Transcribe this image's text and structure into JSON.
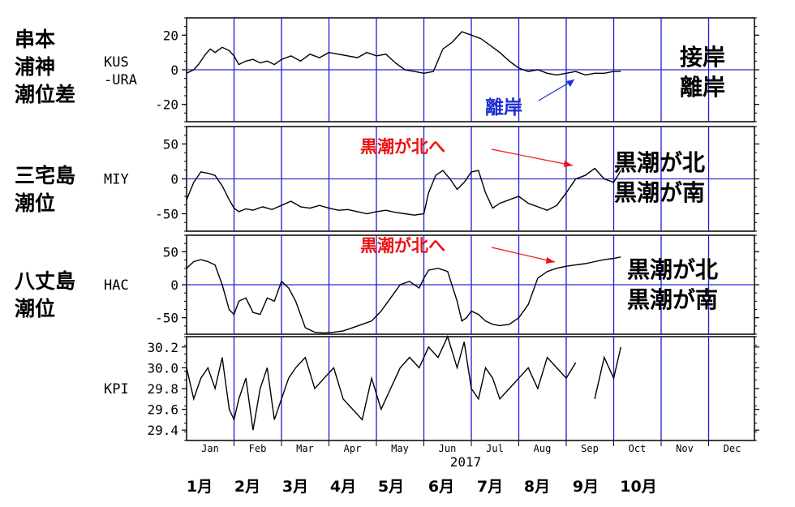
{
  "colors": {
    "axis": "#000000",
    "grid_h": "#2b2bd6",
    "grid_v": "#1a1adc",
    "series": "#000000",
    "red": "#ee1111",
    "blue": "#1f2fd0"
  },
  "year_label": "2017",
  "month_ticks": [
    "Jan",
    "Feb",
    "Mar",
    "Apr",
    "May",
    "Jun",
    "Jul",
    "Aug",
    "Sep",
    "Oct",
    "Nov",
    "Dec"
  ],
  "month_labels_jp": [
    "1月",
    "2月",
    "3月",
    "4月",
    "5月",
    "6月",
    "7月",
    "8月",
    "9月",
    "10月"
  ],
  "panels": [
    {
      "id": "kus",
      "left_title": [
        "串本",
        "浦神",
        "潮位差"
      ],
      "code": [
        "KUS",
        "-URA"
      ],
      "yticks": [
        20,
        0,
        -20
      ],
      "ylim": [
        -30,
        30
      ],
      "right_labels": [
        "接岸",
        "離岸"
      ],
      "note": "離岸",
      "zero_line": 0
    },
    {
      "id": "miy",
      "left_title": [
        "三宅島",
        "潮位"
      ],
      "code": [
        "MIY"
      ],
      "yticks": [
        50,
        0,
        -50
      ],
      "ylim": [
        -75,
        75
      ],
      "right_labels": [
        "黒潮が北",
        "黒潮が南"
      ],
      "note": "黒潮が北へ",
      "zero_line": 0
    },
    {
      "id": "hac",
      "left_title": [
        "八丈島",
        "潮位"
      ],
      "code": [
        "HAC"
      ],
      "yticks": [
        50,
        0,
        -50
      ],
      "ylim": [
        -75,
        75
      ],
      "right_labels": [
        "黒潮が北",
        "黒潮が南"
      ],
      "note": "黒潮が北へ",
      "zero_line": 0
    },
    {
      "id": "kpi",
      "left_title": [],
      "code": [
        "KPI"
      ],
      "yticks": [
        "30.2",
        "30.0",
        "29.8",
        "29.6",
        "29.4"
      ],
      "ytick_values": [
        30.2,
        30.0,
        29.8,
        29.6,
        29.4
      ],
      "ylim": [
        29.3,
        30.3
      ],
      "right_labels": [],
      "note": ""
    }
  ],
  "chart_data": [
    {
      "type": "line",
      "title": "",
      "ylabel": "KUS -URA",
      "xlabel": "2017",
      "ylim": [
        -30,
        30
      ],
      "x": [
        0,
        0.15,
        0.25,
        0.4,
        0.5,
        0.6,
        0.75,
        0.9,
        1.0,
        1.1,
        1.25,
        1.4,
        1.55,
        1.7,
        1.85,
        2.0,
        2.2,
        2.4,
        2.6,
        2.8,
        3.0,
        3.2,
        3.4,
        3.6,
        3.8,
        4.0,
        4.2,
        4.4,
        4.6,
        4.8,
        5.0,
        5.2,
        5.4,
        5.6,
        5.8,
        6.0,
        6.2,
        6.4,
        6.6,
        6.8,
        7.0,
        7.2,
        7.4,
        7.6,
        7.8,
        8.0,
        8.2,
        8.4,
        8.6,
        8.8,
        9.0,
        9.15
      ],
      "values": [
        -2,
        0,
        3,
        9,
        12,
        10,
        13,
        11,
        8,
        3,
        5,
        6,
        4,
        5,
        3,
        6,
        8,
        5,
        9,
        7,
        10,
        9,
        8,
        7,
        10,
        8,
        9,
        4,
        0,
        -1,
        -2,
        -1,
        12,
        16,
        22,
        20,
        18,
        14,
        10,
        5,
        1,
        -1,
        0,
        -2,
        -3,
        -2,
        -1,
        -3,
        -2,
        -2,
        -1,
        -1
      ]
    },
    {
      "type": "line",
      "ylabel": "MIY",
      "ylim": [
        -75,
        75
      ],
      "x": [
        0,
        0.15,
        0.3,
        0.45,
        0.6,
        0.75,
        0.9,
        1.0,
        1.1,
        1.25,
        1.4,
        1.6,
        1.8,
        2.0,
        2.2,
        2.4,
        2.6,
        2.8,
        3.0,
        3.2,
        3.4,
        3.6,
        3.8,
        4.0,
        4.2,
        4.4,
        4.6,
        4.8,
        5.0,
        5.1,
        5.25,
        5.4,
        5.55,
        5.7,
        5.85,
        6.0,
        6.15,
        6.3,
        6.45,
        6.6,
        6.8,
        7.0,
        7.2,
        7.4,
        7.6,
        7.8,
        8.0,
        8.2,
        8.4,
        8.6,
        8.8,
        9.0,
        9.15
      ],
      "values": [
        -30,
        -5,
        10,
        8,
        5,
        -10,
        -30,
        -42,
        -47,
        -43,
        -45,
        -40,
        -44,
        -38,
        -32,
        -40,
        -42,
        -38,
        -42,
        -45,
        -44,
        -47,
        -50,
        -47,
        -45,
        -48,
        -50,
        -52,
        -50,
        -20,
        5,
        12,
        0,
        -15,
        -5,
        10,
        12,
        -20,
        -42,
        -35,
        -30,
        -25,
        -35,
        -40,
        -45,
        -38,
        -20,
        0,
        5,
        15,
        0,
        -5,
        12
      ]
    },
    {
      "type": "line",
      "ylabel": "HAC",
      "ylim": [
        -75,
        75
      ],
      "x": [
        0,
        0.15,
        0.3,
        0.45,
        0.6,
        0.75,
        0.9,
        1.0,
        1.1,
        1.25,
        1.4,
        1.55,
        1.7,
        1.85,
        2.0,
        2.15,
        2.3,
        2.5,
        2.7,
        2.9,
        3.1,
        3.3,
        3.5,
        3.7,
        3.9,
        4.1,
        4.3,
        4.5,
        4.7,
        4.9,
        5.0,
        5.1,
        5.3,
        5.5,
        5.7,
        5.8,
        5.9,
        6.0,
        6.15,
        6.3,
        6.45,
        6.6,
        6.8,
        7.0,
        7.2,
        7.4,
        7.6,
        7.8,
        8.0,
        8.2,
        8.4,
        8.6,
        8.8,
        9.0,
        9.15
      ],
      "values": [
        25,
        35,
        38,
        35,
        30,
        0,
        -38,
        -45,
        -25,
        -20,
        -42,
        -45,
        -20,
        -25,
        5,
        -5,
        -25,
        -65,
        -72,
        -73,
        -72,
        -70,
        -65,
        -60,
        -55,
        -40,
        -20,
        0,
        5,
        -5,
        10,
        22,
        25,
        20,
        -25,
        -55,
        -50,
        -40,
        -45,
        -55,
        -60,
        -62,
        -60,
        -50,
        -30,
        10,
        20,
        25,
        28,
        30,
        32,
        35,
        38,
        40,
        42
      ]
    },
    {
      "type": "line",
      "ylabel": "KPI",
      "ylim": [
        29.3,
        30.3
      ],
      "x": [
        0,
        0.15,
        0.3,
        0.45,
        0.6,
        0.75,
        0.9,
        1.0,
        1.1,
        1.25,
        1.4,
        1.55,
        1.7,
        1.85,
        2.0,
        2.15,
        2.3,
        2.5,
        2.7,
        2.9,
        3.1,
        3.3,
        3.5,
        3.7,
        3.9,
        4.1,
        4.3,
        4.5,
        4.7,
        4.9,
        5.1,
        5.3,
        5.5,
        5.7,
        5.85,
        6.0,
        6.15,
        6.3,
        6.45,
        6.6,
        6.8,
        7.0,
        7.2,
        7.4,
        7.6,
        7.8,
        8.0,
        8.2,
        8.4,
        8.6,
        8.8,
        9.0,
        9.15
      ],
      "values": [
        30.0,
        29.7,
        29.9,
        30.0,
        29.8,
        30.1,
        29.6,
        29.5,
        29.7,
        29.9,
        29.4,
        29.8,
        30.0,
        29.5,
        29.7,
        29.9,
        30.0,
        30.1,
        29.8,
        29.9,
        30.0,
        29.7,
        29.6,
        29.5,
        29.9,
        29.6,
        29.8,
        30.0,
        30.1,
        30.0,
        30.2,
        30.1,
        30.3,
        30.0,
        30.25,
        29.8,
        29.7,
        30.0,
        29.9,
        29.7,
        29.8,
        29.9,
        30.0,
        29.8,
        30.1,
        30.0,
        29.9,
        30.05,
        null,
        29.7,
        30.1,
        29.9,
        30.2
      ]
    }
  ]
}
